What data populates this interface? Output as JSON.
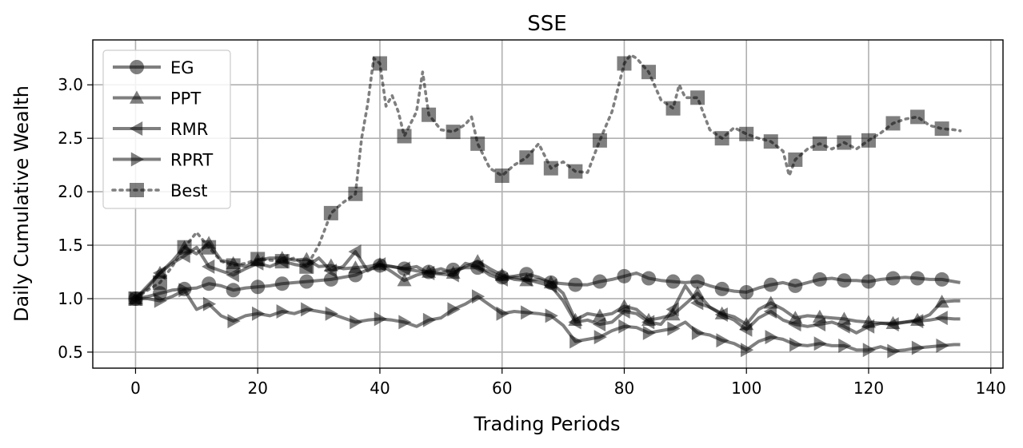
{
  "chart_data": {
    "type": "line",
    "title": "SSE",
    "xlabel": "Trading Periods",
    "ylabel": "Daily Cumulative Wealth",
    "xlim": [
      -7,
      142
    ],
    "ylim": [
      0.35,
      3.42
    ],
    "xticks": [
      0,
      20,
      40,
      60,
      80,
      100,
      120,
      140
    ],
    "yticks": [
      0.5,
      1.0,
      1.5,
      2.0,
      2.5,
      3.0
    ],
    "xtick_labels": [
      "0",
      "20",
      "40",
      "60",
      "80",
      "100",
      "120",
      "140"
    ],
    "ytick_labels": [
      "0.5",
      "1.0",
      "1.5",
      "2.0",
      "2.5",
      "3.0"
    ],
    "grid": true,
    "legend_position": "top-left",
    "line_color": "#000000",
    "grid_color": "#b0b0b0",
    "series": [
      {
        "name": "EG",
        "marker": "circle",
        "linestyle": "solid",
        "x": [
          0,
          2,
          4,
          6,
          8,
          10,
          12,
          14,
          16,
          18,
          20,
          22,
          24,
          26,
          28,
          30,
          32,
          34,
          36,
          38,
          40,
          42,
          44,
          46,
          48,
          50,
          52,
          54,
          56,
          58,
          60,
          62,
          64,
          66,
          68,
          70,
          72,
          74,
          76,
          78,
          80,
          82,
          84,
          86,
          88,
          90,
          92,
          94,
          96,
          98,
          100,
          102,
          104,
          106,
          108,
          110,
          112,
          114,
          116,
          118,
          120,
          122,
          124,
          126,
          128,
          130,
          132,
          134,
          135
        ],
        "y": [
          1.0,
          1.02,
          1.05,
          1.08,
          1.09,
          1.1,
          1.14,
          1.12,
          1.08,
          1.1,
          1.11,
          1.12,
          1.14,
          1.15,
          1.16,
          1.17,
          1.18,
          1.2,
          1.22,
          1.27,
          1.31,
          1.3,
          1.28,
          1.26,
          1.25,
          1.24,
          1.27,
          1.29,
          1.29,
          1.25,
          1.2,
          1.21,
          1.23,
          1.2,
          1.15,
          1.14,
          1.13,
          1.13,
          1.16,
          1.18,
          1.21,
          1.24,
          1.19,
          1.17,
          1.16,
          1.15,
          1.16,
          1.12,
          1.09,
          1.07,
          1.06,
          1.1,
          1.13,
          1.15,
          1.12,
          1.15,
          1.18,
          1.19,
          1.17,
          1.17,
          1.16,
          1.18,
          1.19,
          1.2,
          1.19,
          1.18,
          1.18,
          1.16,
          1.15
        ]
      },
      {
        "name": "PPT",
        "marker": "triangle-up",
        "linestyle": "solid",
        "x": [
          0,
          2,
          4,
          6,
          8,
          10,
          12,
          14,
          16,
          18,
          20,
          22,
          24,
          26,
          28,
          30,
          32,
          34,
          36,
          38,
          40,
          42,
          44,
          46,
          48,
          50,
          52,
          54,
          56,
          58,
          60,
          62,
          64,
          66,
          68,
          70,
          72,
          74,
          76,
          78,
          80,
          82,
          84,
          86,
          88,
          90,
          92,
          94,
          96,
          98,
          100,
          102,
          104,
          106,
          108,
          110,
          112,
          114,
          116,
          118,
          120,
          122,
          124,
          126,
          128,
          130,
          132,
          134,
          135
        ],
        "y": [
          1.0,
          1.1,
          1.24,
          1.35,
          1.48,
          1.42,
          1.52,
          1.36,
          1.33,
          1.3,
          1.36,
          1.38,
          1.38,
          1.36,
          1.37,
          1.3,
          1.31,
          1.28,
          1.29,
          1.3,
          1.32,
          1.25,
          1.17,
          1.22,
          1.25,
          1.28,
          1.24,
          1.3,
          1.35,
          1.28,
          1.22,
          1.18,
          1.17,
          1.18,
          1.15,
          1.05,
          0.8,
          0.86,
          0.84,
          0.86,
          0.93,
          0.9,
          0.8,
          0.82,
          0.85,
          0.95,
          1.05,
          0.92,
          0.86,
          0.83,
          0.76,
          0.9,
          0.96,
          0.9,
          0.82,
          0.84,
          0.83,
          0.82,
          0.81,
          0.79,
          0.78,
          0.77,
          0.77,
          0.78,
          0.8,
          0.85,
          0.97,
          0.98,
          0.98
        ]
      },
      {
        "name": "RMR",
        "marker": "triangle-left",
        "linestyle": "solid",
        "x": [
          0,
          2,
          4,
          6,
          8,
          10,
          12,
          14,
          16,
          18,
          20,
          22,
          24,
          26,
          28,
          30,
          32,
          34,
          36,
          38,
          40,
          42,
          44,
          46,
          48,
          50,
          52,
          54,
          56,
          58,
          60,
          62,
          64,
          66,
          68,
          70,
          72,
          74,
          76,
          78,
          80,
          82,
          84,
          86,
          88,
          90,
          92,
          94,
          96,
          98,
          100,
          102,
          104,
          106,
          108,
          110,
          112,
          114,
          116,
          118,
          120,
          122,
          124,
          126,
          128,
          130,
          132,
          134,
          135
        ],
        "y": [
          1.0,
          1.12,
          1.24,
          1.33,
          1.4,
          1.48,
          1.3,
          1.26,
          1.22,
          1.28,
          1.33,
          1.3,
          1.35,
          1.32,
          1.3,
          1.38,
          1.26,
          1.3,
          1.44,
          1.26,
          1.32,
          1.3,
          1.28,
          1.3,
          1.24,
          1.23,
          1.22,
          1.33,
          1.3,
          1.22,
          1.18,
          1.2,
          1.18,
          1.15,
          1.12,
          0.98,
          0.78,
          0.8,
          0.76,
          0.78,
          0.88,
          0.86,
          0.78,
          0.76,
          0.9,
          1.12,
          0.96,
          0.92,
          0.85,
          0.8,
          0.71,
          0.82,
          0.88,
          0.8,
          0.76,
          0.74,
          0.76,
          0.78,
          0.74,
          0.68,
          0.74,
          0.77,
          0.76,
          0.78,
          0.79,
          0.8,
          0.82,
          0.81,
          0.81
        ]
      },
      {
        "name": "RPRT",
        "marker": "triangle-right",
        "linestyle": "solid",
        "x": [
          0,
          2,
          4,
          6,
          8,
          10,
          12,
          14,
          16,
          18,
          20,
          22,
          24,
          26,
          28,
          30,
          32,
          34,
          36,
          38,
          40,
          42,
          44,
          46,
          48,
          50,
          52,
          54,
          56,
          58,
          60,
          62,
          64,
          66,
          68,
          70,
          72,
          74,
          76,
          78,
          80,
          82,
          84,
          86,
          88,
          90,
          92,
          94,
          96,
          98,
          100,
          102,
          104,
          106,
          108,
          110,
          112,
          114,
          116,
          118,
          120,
          122,
          124,
          126,
          128,
          130,
          132,
          134,
          135
        ],
        "y": [
          1.0,
          1.0,
          0.98,
          1.02,
          1.08,
          0.9,
          0.95,
          0.84,
          0.79,
          0.84,
          0.86,
          0.84,
          0.88,
          0.86,
          0.9,
          0.88,
          0.86,
          0.82,
          0.78,
          0.8,
          0.81,
          0.8,
          0.78,
          0.74,
          0.8,
          0.82,
          0.9,
          0.95,
          1.02,
          0.94,
          0.86,
          0.88,
          0.87,
          0.86,
          0.84,
          0.75,
          0.6,
          0.62,
          0.64,
          0.7,
          0.74,
          0.73,
          0.68,
          0.7,
          0.72,
          0.78,
          0.68,
          0.66,
          0.61,
          0.58,
          0.52,
          0.6,
          0.64,
          0.62,
          0.57,
          0.56,
          0.58,
          0.56,
          0.56,
          0.52,
          0.52,
          0.55,
          0.51,
          0.52,
          0.54,
          0.55,
          0.56,
          0.57,
          0.57
        ]
      },
      {
        "name": "Best",
        "marker": "square",
        "linestyle": "dotted",
        "x": [
          0,
          2,
          4,
          6,
          8,
          10,
          12,
          14,
          16,
          18,
          20,
          22,
          24,
          26,
          28,
          30,
          32,
          34,
          36,
          37,
          38,
          39,
          40,
          41,
          42,
          43,
          44,
          46,
          47,
          48,
          50,
          52,
          54,
          55,
          56,
          58,
          60,
          62,
          64,
          66,
          68,
          70,
          72,
          74,
          76,
          78,
          80,
          81,
          82,
          84,
          86,
          88,
          89,
          90,
          92,
          94,
          96,
          98,
          100,
          102,
          104,
          106,
          107,
          108,
          110,
          112,
          114,
          116,
          118,
          120,
          122,
          124,
          126,
          128,
          130,
          132,
          134,
          135
        ],
        "y": [
          1.0,
          1.08,
          1.15,
          1.3,
          1.48,
          1.62,
          1.48,
          1.35,
          1.31,
          1.33,
          1.37,
          1.36,
          1.35,
          1.38,
          1.3,
          1.5,
          1.8,
          1.9,
          1.98,
          2.5,
          2.82,
          3.25,
          3.2,
          2.8,
          2.9,
          2.75,
          2.52,
          2.75,
          3.12,
          2.72,
          2.58,
          2.56,
          2.63,
          2.7,
          2.45,
          2.22,
          2.15,
          2.25,
          2.32,
          2.45,
          2.22,
          2.28,
          2.19,
          2.18,
          2.48,
          2.75,
          3.2,
          3.28,
          3.25,
          3.12,
          2.86,
          2.78,
          3.0,
          2.88,
          2.88,
          2.58,
          2.5,
          2.6,
          2.54,
          2.5,
          2.47,
          2.38,
          2.15,
          2.3,
          2.4,
          2.45,
          2.4,
          2.46,
          2.4,
          2.48,
          2.55,
          2.64,
          2.68,
          2.7,
          2.62,
          2.59,
          2.58,
          2.57
        ]
      }
    ]
  }
}
